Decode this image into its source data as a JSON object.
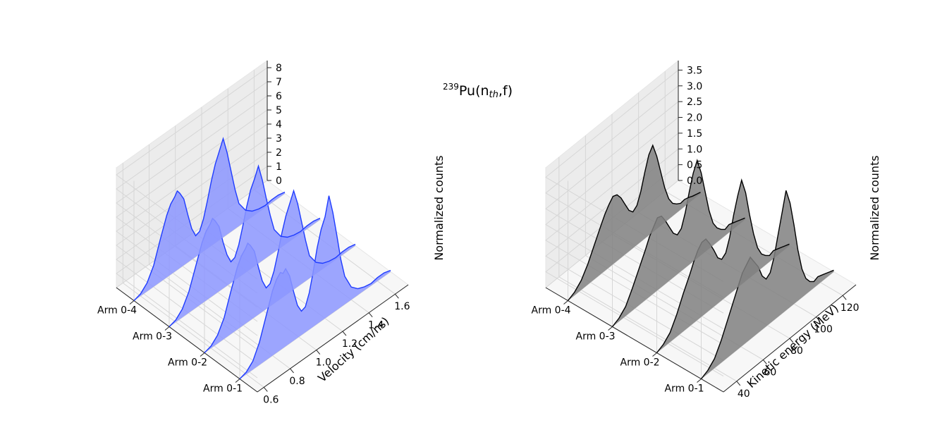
{
  "figure": {
    "title": {
      "isotope_mass": "239",
      "element": "Pu(n",
      "subscript": "th",
      "suffix": ",f)"
    }
  },
  "chart_data": [
    {
      "type": "area",
      "projection": "3d",
      "color": "#1f3cff",
      "fill": "#8c97ff",
      "categories": [
        "Arm 0-1",
        "Arm 0-2",
        "Arm 0-3",
        "Arm 0-4"
      ],
      "xlabel": "Velocity (cm/ns)",
      "zlabel": "Normalized counts",
      "x_ticks": [
        "0.6",
        "0.8",
        "1.0",
        "1.2",
        "1.4",
        "1.6"
      ],
      "z_ticks": [
        "0",
        "1",
        "2",
        "3",
        "4",
        "5",
        "6",
        "7",
        "8"
      ],
      "xlim": [
        0.55,
        1.7
      ],
      "zlim": [
        0,
        8.5
      ],
      "series": [
        {
          "category": "Arm 0-1",
          "x": [
            0.55,
            0.6,
            0.65,
            0.7,
            0.75,
            0.8,
            0.83,
            0.86,
            0.88,
            0.9,
            0.93,
            0.96,
            0.99,
            1.02,
            1.05,
            1.08,
            1.11,
            1.14,
            1.17,
            1.2,
            1.23,
            1.26,
            1.29,
            1.32,
            1.35,
            1.4,
            1.45,
            1.5,
            1.55,
            1.6,
            1.65,
            1.7
          ],
          "y": [
            0.0,
            0.15,
            0.6,
            1.6,
            3.1,
            4.6,
            5.2,
            5.5,
            5.3,
            5.5,
            4.8,
            3.5,
            2.3,
            1.7,
            1.8,
            2.6,
            3.9,
            5.4,
            6.5,
            7.2,
            8.5,
            7.1,
            5.3,
            3.4,
            2.0,
            0.9,
            0.45,
            0.25,
            0.15,
            0.25,
            0.25,
            0.1
          ]
        },
        {
          "category": "Arm 0-2",
          "x": [
            0.55,
            0.6,
            0.65,
            0.7,
            0.75,
            0.8,
            0.83,
            0.86,
            0.88,
            0.9,
            0.93,
            0.96,
            0.99,
            1.02,
            1.05,
            1.08,
            1.11,
            1.14,
            1.17,
            1.2,
            1.23,
            1.26,
            1.29,
            1.32,
            1.35,
            1.4,
            1.45,
            1.5,
            1.55,
            1.6,
            1.65,
            1.7
          ],
          "y": [
            0.0,
            0.15,
            0.6,
            1.5,
            3.0,
            4.4,
            5.0,
            5.3,
            5.6,
            5.3,
            4.7,
            3.4,
            2.2,
            1.5,
            1.6,
            2.3,
            3.4,
            4.6,
            5.6,
            6.3,
            7.0,
            5.9,
            4.4,
            2.9,
            1.6,
            0.8,
            0.4,
            0.22,
            0.14,
            0.22,
            0.22,
            0.1
          ]
        },
        {
          "category": "Arm 0-3",
          "x": [
            0.55,
            0.6,
            0.65,
            0.7,
            0.75,
            0.8,
            0.83,
            0.86,
            0.88,
            0.9,
            0.93,
            0.96,
            0.99,
            1.02,
            1.05,
            1.08,
            1.11,
            1.14,
            1.17,
            1.2,
            1.23,
            1.26,
            1.29,
            1.32,
            1.35,
            1.4,
            1.45,
            1.5,
            1.55,
            1.6,
            1.65,
            1.7
          ],
          "y": [
            0.0,
            0.15,
            0.6,
            1.5,
            2.9,
            4.3,
            4.9,
            5.2,
            5.5,
            5.2,
            4.6,
            3.3,
            2.2,
            1.5,
            1.6,
            2.3,
            3.4,
            4.6,
            5.6,
            6.2,
            6.9,
            5.7,
            4.2,
            2.8,
            1.6,
            0.8,
            0.4,
            0.22,
            0.14,
            0.22,
            0.22,
            0.1
          ]
        },
        {
          "category": "Arm 0-4",
          "x": [
            0.55,
            0.6,
            0.65,
            0.7,
            0.75,
            0.8,
            0.83,
            0.86,
            0.88,
            0.9,
            0.93,
            0.96,
            0.99,
            1.02,
            1.05,
            1.08,
            1.11,
            1.14,
            1.17,
            1.2,
            1.23,
            1.26,
            1.29,
            1.32,
            1.35,
            1.4,
            1.45,
            1.5,
            1.55,
            1.6,
            1.65,
            1.7
          ],
          "y": [
            0.0,
            0.15,
            0.6,
            1.5,
            3.0,
            4.4,
            5.0,
            5.3,
            5.6,
            5.3,
            4.7,
            3.4,
            2.2,
            1.5,
            1.6,
            2.3,
            3.4,
            4.6,
            5.6,
            6.3,
            7.0,
            5.8,
            4.3,
            2.8,
            1.6,
            0.8,
            0.4,
            0.22,
            0.14,
            0.22,
            0.22,
            0.1
          ]
        }
      ],
      "grid": true
    },
    {
      "type": "area",
      "projection": "3d",
      "color": "#000000",
      "fill": "#808080",
      "categories": [
        "Arm 0-1",
        "Arm 0-2",
        "Arm 0-3",
        "Arm 0-4"
      ],
      "xlabel": "Kinetic energy (MeV)",
      "zlabel": "Normalized counts",
      "x_ticks": [
        "40",
        "60",
        "80",
        "100",
        "120"
      ],
      "z_ticks": [
        "0.0",
        "0.5",
        "1.0",
        "1.5",
        "2.0",
        "2.5",
        "3.0",
        "3.5"
      ],
      "xlim": [
        30,
        130
      ],
      "zlim": [
        0,
        3.8
      ],
      "series": [
        {
          "category": "Arm 0-1",
          "x": [
            30,
            35,
            40,
            45,
            50,
            55,
            58,
            61,
            64,
            67,
            70,
            73,
            76,
            79,
            82,
            85,
            88,
            91,
            94,
            97,
            100,
            103,
            106,
            109,
            112,
            115,
            118,
            121,
            124,
            127,
            130
          ],
          "y": [
            0.0,
            0.1,
            0.3,
            0.7,
            1.2,
            1.7,
            2.0,
            2.3,
            2.45,
            2.6,
            2.35,
            2.1,
            1.7,
            1.5,
            1.6,
            2.0,
            2.6,
            3.2,
            3.8,
            3.3,
            2.5,
            1.6,
            0.9,
            0.5,
            0.3,
            0.2,
            0.25,
            0.2,
            0.15,
            0.1,
            0.05
          ]
        },
        {
          "category": "Arm 0-2",
          "x": [
            30,
            35,
            40,
            45,
            50,
            55,
            58,
            61,
            64,
            67,
            70,
            73,
            76,
            79,
            82,
            85,
            88,
            91,
            94,
            97,
            100,
            103,
            106,
            109,
            112,
            115,
            118,
            121,
            124,
            127,
            130
          ],
          "y": [
            0.0,
            0.1,
            0.3,
            0.7,
            1.2,
            1.65,
            1.95,
            2.2,
            2.35,
            2.35,
            2.1,
            1.8,
            1.45,
            1.3,
            1.4,
            1.8,
            2.4,
            2.9,
            3.3,
            2.8,
            2.0,
            1.3,
            0.75,
            0.45,
            0.3,
            0.2,
            0.25,
            0.2,
            0.15,
            0.1,
            0.05
          ]
        },
        {
          "category": "Arm 0-3",
          "x": [
            30,
            35,
            40,
            45,
            50,
            55,
            58,
            61,
            64,
            67,
            70,
            73,
            76,
            79,
            82,
            85,
            88,
            91,
            94,
            97,
            100,
            103,
            106,
            109,
            112,
            115,
            118,
            121,
            124,
            127,
            130
          ],
          "y": [
            0.0,
            0.1,
            0.3,
            0.7,
            1.15,
            1.6,
            1.9,
            2.1,
            2.3,
            2.25,
            2.0,
            1.7,
            1.4,
            1.25,
            1.35,
            1.75,
            2.3,
            2.8,
            3.1,
            2.6,
            1.9,
            1.2,
            0.7,
            0.45,
            0.3,
            0.2,
            0.25,
            0.2,
            0.15,
            0.1,
            0.05
          ]
        },
        {
          "category": "Arm 0-4",
          "x": [
            30,
            35,
            40,
            45,
            50,
            55,
            58,
            61,
            64,
            67,
            70,
            73,
            76,
            79,
            82,
            85,
            88,
            91,
            94,
            97,
            100,
            103,
            106,
            109,
            112,
            115,
            118,
            121,
            124,
            127,
            130
          ],
          "y": [
            0.0,
            0.1,
            0.3,
            0.65,
            1.1,
            1.55,
            1.8,
            2.0,
            2.15,
            2.1,
            1.9,
            1.6,
            1.3,
            1.15,
            1.25,
            1.6,
            2.1,
            2.55,
            2.75,
            2.3,
            1.7,
            1.1,
            0.65,
            0.4,
            0.28,
            0.2,
            0.22,
            0.18,
            0.12,
            0.08,
            0.04
          ]
        }
      ],
      "grid": true
    }
  ]
}
